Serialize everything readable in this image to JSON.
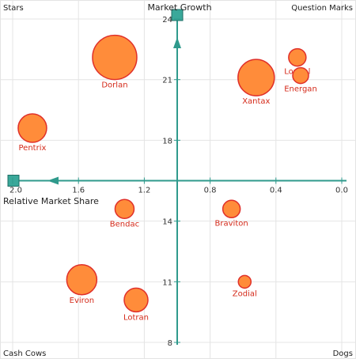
{
  "chart_data": {
    "type": "scatter",
    "subtype": "bubble",
    "title": "",
    "xlabel": "Relative Market Share",
    "ylabel": "Market Growth",
    "xlim": [
      2.0,
      0.0
    ],
    "ylim": [
      8,
      24
    ],
    "x_ticks": [
      "2.0",
      "1.6",
      "1.2",
      "0.8",
      "0.4",
      "0.0"
    ],
    "y_ticks": [
      "24",
      "21",
      "18",
      "14",
      "11",
      "8"
    ],
    "x_axis_crosses_at": 16,
    "y_axis_crosses_at": 1.0,
    "grid": true,
    "quadrant_labels": {
      "top_left": "Stars",
      "top_right": "Question Marks",
      "bottom_left": "Cash Cows",
      "bottom_right": "Dogs"
    },
    "points": [
      {
        "label": "Dorlan",
        "x": 1.38,
        "y": 22.1,
        "size": 28
      },
      {
        "label": "Longal",
        "x": 0.27,
        "y": 22.1,
        "size": 11
      },
      {
        "label": "Energan",
        "x": 0.25,
        "y": 21.2,
        "size": 10
      },
      {
        "label": "Xantax",
        "x": 0.52,
        "y": 21.1,
        "size": 23
      },
      {
        "label": "Pentrix",
        "x": 1.88,
        "y": 18.6,
        "size": 18
      },
      {
        "label": "Bendac",
        "x": 1.32,
        "y": 14.6,
        "size": 12
      },
      {
        "label": "Braviton",
        "x": 0.67,
        "y": 14.6,
        "size": 11
      },
      {
        "label": "Eviron",
        "x": 1.58,
        "y": 11.1,
        "size": 19
      },
      {
        "label": "Zodial",
        "x": 0.59,
        "y": 11.0,
        "size": 8
      },
      {
        "label": "Lotran",
        "x": 1.25,
        "y": 10.1,
        "size": 15
      }
    ],
    "colors": {
      "bubble_fill": "#ff8c3a",
      "bubble_stroke": "#e0302a",
      "axis": "#2f9a8c",
      "label": "#d42a1a"
    }
  }
}
